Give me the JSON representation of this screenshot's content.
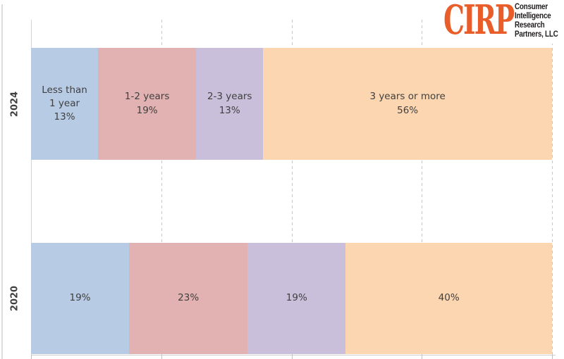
{
  "logo": {
    "brand": "CIRP",
    "org_lines": [
      "Consumer",
      "Intelligence",
      "Research",
      "Partners, LLC"
    ]
  },
  "colors": {
    "segments": [
      "#b8cbe4",
      "#e1b2b1",
      "#c9bfdb",
      "#fcd6b0"
    ],
    "label_text": "#3f3f3f",
    "gridline": "#c7c7c7",
    "axis_line": "#cfcfcf",
    "logo_orange": "#e95d2a",
    "logo_black": "#231f20"
  },
  "chart_data": {
    "type": "bar",
    "variant": "horizontal-stacked-percent",
    "title": "",
    "categories": [
      "2024",
      "2020"
    ],
    "series": [
      {
        "name": "Less than 1 year",
        "values": [
          13,
          19
        ]
      },
      {
        "name": "1-2 years",
        "values": [
          19,
          23
        ]
      },
      {
        "name": "2-3 years",
        "values": [
          13,
          19
        ]
      },
      {
        "name": "3 years or more",
        "values": [
          56,
          40
        ]
      }
    ],
    "x_axis": {
      "range": [
        0,
        100
      ],
      "gridlines_at": [
        25,
        50,
        75,
        100
      ],
      "gridline_style": "dashed",
      "tick_labels_visible": false
    },
    "legend_visible": false,
    "bar_labels": {
      "2024": [
        [
          "Less than",
          "1 year",
          "13%"
        ],
        [
          "1-2 years",
          "19%"
        ],
        [
          "2-3 years",
          "13%"
        ],
        [
          "3 years or more",
          "56%"
        ]
      ],
      "2020": [
        [
          "19%"
        ],
        [
          "23%"
        ],
        [
          "19%"
        ],
        [
          "40%"
        ]
      ]
    }
  }
}
